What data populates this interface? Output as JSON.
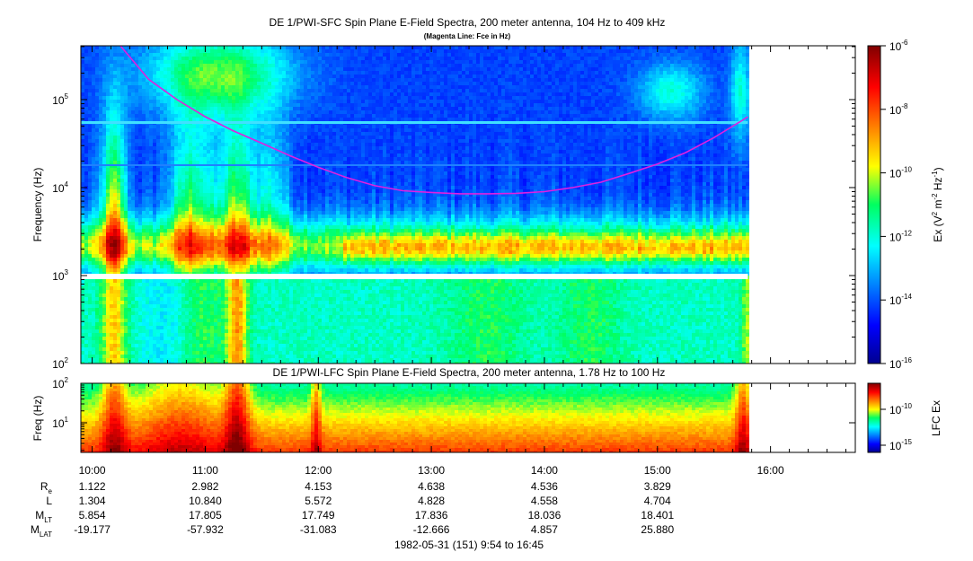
{
  "chart_data": [
    {
      "type": "heatmap",
      "title": "DE 1/PWI-SFC  Spin Plane E-Field Spectra, 200 meter antenna, 104 Hz to 409 kHz",
      "subtitle": "(Magenta Line: Fce in Hz)",
      "ylabel": "Frequency (Hz)",
      "y_scale": "log",
      "ylim": [
        100,
        409000
      ],
      "y_ticks": [
        {
          "mant": "10",
          "exp": "2"
        },
        {
          "mant": "10",
          "exp": "3"
        },
        {
          "mant": "10",
          "exp": "4"
        },
        {
          "mant": "10",
          "exp": "5"
        }
      ],
      "xlim": [
        "09:54",
        "16:45"
      ],
      "data_end": "15:48",
      "colorbar": {
        "label": "Ex (V",
        "label_sup1": "2",
        "label_mid": " m",
        "label_sup2": "-2",
        "label_mid2": " Hz",
        "label_sup3": "-1",
        "label_end": ")",
        "scale": "log",
        "range": [
          1e-16,
          1e-06
        ],
        "ticks": [
          {
            "mant": "10",
            "exp": "-6"
          },
          {
            "mant": "10",
            "exp": "-8"
          },
          {
            "mant": "10",
            "exp": "-10"
          },
          {
            "mant": "10",
            "exp": "-12"
          },
          {
            "mant": "10",
            "exp": "-14"
          },
          {
            "mant": "10",
            "exp": "-16"
          }
        ]
      },
      "series": [
        {
          "name": "Fce",
          "color": "#e020e0",
          "points": [
            [
              "10:15",
              409000
            ],
            [
              "10:30",
              170000
            ],
            [
              "10:45",
              100000
            ],
            [
              "11:00",
              64000
            ],
            [
              "11:15",
              44000
            ],
            [
              "11:30",
              32000
            ],
            [
              "11:45",
              23000
            ],
            [
              "12:00",
              17000
            ],
            [
              "12:15",
              13000
            ],
            [
              "12:30",
              10500
            ],
            [
              "12:45",
              9200
            ],
            [
              "13:00",
              8800
            ],
            [
              "13:15",
              8500
            ],
            [
              "13:30",
              8500
            ],
            [
              "13:45",
              8600
            ],
            [
              "14:00",
              9000
            ],
            [
              "14:15",
              10000
            ],
            [
              "14:30",
              11500
            ],
            [
              "14:45",
              14500
            ],
            [
              "15:00",
              18500
            ],
            [
              "15:15",
              25000
            ],
            [
              "15:30",
              37000
            ],
            [
              "15:45",
              58000
            ],
            [
              "15:48",
              64000
            ]
          ]
        }
      ]
    },
    {
      "type": "heatmap",
      "title": "DE 1/PWI-LFC  Spin Plane E-Field Spectra, 200 meter antenna, 1.78 Hz to 100 Hz",
      "ylabel": "Freq (Hz)",
      "y_scale": "log",
      "ylim": [
        1.78,
        100
      ],
      "y_ticks": [
        {
          "mant": "10",
          "exp": "1"
        },
        {
          "mant": "10",
          "exp": "2"
        }
      ],
      "colorbar": {
        "label": "LFC Ex",
        "scale": "log",
        "ticks": [
          {
            "mant": "10",
            "exp": "-10"
          },
          {
            "mant": "10",
            "exp": "-15"
          }
        ]
      }
    }
  ],
  "x_axis": {
    "ticks": [
      "10:00",
      "11:00",
      "12:00",
      "13:00",
      "14:00",
      "15:00",
      "16:00"
    ]
  },
  "ephemeris": {
    "rows": [
      {
        "label": "R",
        "sub": "e",
        "values": [
          "1.122",
          "2.982",
          "4.153",
          "4.638",
          "4.536",
          "3.829"
        ]
      },
      {
        "label": "L",
        "sub": "",
        "values": [
          "1.304",
          "10.840",
          "5.572",
          "4.828",
          "4.558",
          "4.704"
        ]
      },
      {
        "label": "M",
        "sub": "LT",
        "values": [
          "5.854",
          "17.805",
          "17.749",
          "17.836",
          "18.036",
          "18.401"
        ]
      },
      {
        "label": "M",
        "sub": "LAT",
        "values": [
          "-19.177",
          "-57.932",
          "-31.083",
          "-12.666",
          "4.857",
          "25.880"
        ]
      }
    ]
  },
  "footer": "1982-05-31 (151) 9:54 to 16:45"
}
